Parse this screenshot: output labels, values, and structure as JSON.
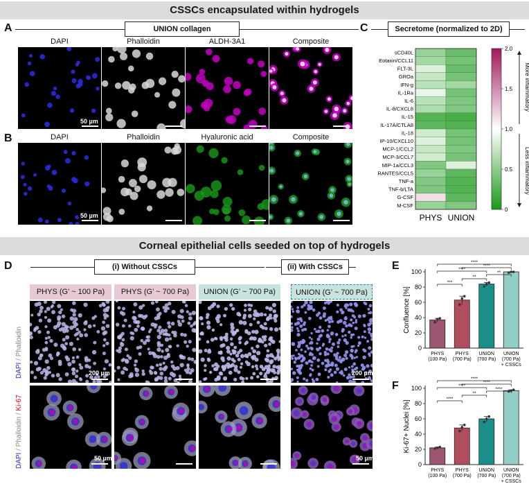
{
  "banners": {
    "top": "CSSCs encapsulated within hydrogels",
    "bottom": "Corneal epithelial cells seeded on top of hydrogels"
  },
  "panels": {
    "a": "A",
    "b": "B",
    "c": "C",
    "d": "D",
    "e": "E",
    "f": "F"
  },
  "panel_a": {
    "box_label": "UNION collagen",
    "channels": [
      "DAPI",
      "Phalloidin",
      "ALDH-3A1",
      "Composite"
    ],
    "scale_label": "50 µm"
  },
  "panel_b": {
    "channels": [
      "DAPI",
      "Phalloidin",
      "Hyaluronic acid",
      "Composite"
    ],
    "scale_label": "50 µm"
  },
  "panel_c": {
    "box_label": "Secretome (normalized to 2D)"
  },
  "panel_d": {
    "group_i": "(i) Without CSSCs",
    "group_ii": "(ii) With CSSCs",
    "conditions": [
      "PHYS  (G’ ~ 100 Pa)",
      "PHYS  (G’ ~ 700 Pa)",
      "UNION (G’ ~ 700 Pa)",
      "UNION (G’ ~ 700 Pa)"
    ],
    "row1_label": {
      "dapi": "DAPI",
      "sep": " / ",
      "phalloidin": "Phalloidin"
    },
    "row2_label": {
      "dapi": "DAPI",
      "sep1": " / ",
      "phalloidin": "Phalloidin",
      "sep2": " / ",
      "ki67": "Ki-67"
    },
    "scale_row1": "200 µm",
    "scale_row2": "50 µm"
  },
  "colors": {
    "phys100": "#9c5672",
    "phys700": "#b04e5e",
    "union700": "#1a8f8a",
    "union_csscs": "#7fc6bd",
    "heat_low": "#1a9a1a",
    "heat_mid": "#ffffff",
    "heat_high": "#a0185c",
    "dapi": "#2a2ad8",
    "ki67": "#d00000",
    "hyaluronic": "#1a9a1a",
    "aldh": "#c200c2"
  },
  "chart_data": [
    {
      "type": "heatmap",
      "columns": [
        "PHYS",
        "UNION"
      ],
      "rows": [
        "sCD40L",
        "Eotaxin/CCL11",
        "FLT-3L",
        "GROa",
        "IFN-g",
        "IL-1Ra",
        "IL-6",
        "IL-8/CXCL8",
        "IL-15",
        "IL-17A/CTLA8",
        "IL-18",
        "IP-10/CXCL10",
        "MCP-1/CCL2",
        "MCP-3/CCL7",
        "MIP-1a/CCL3",
        "RANTES/CCL5",
        "TNF-a",
        "TNF-b/LTA",
        "G-CSF",
        "M-CSF"
      ],
      "values": [
        [
          0.55,
          0.35
        ],
        [
          0.6,
          0.4
        ],
        [
          0.85,
          0.35
        ],
        [
          0.75,
          0.4
        ],
        [
          0.7,
          0.6
        ],
        [
          0.9,
          0.4
        ],
        [
          0.7,
          0.45
        ],
        [
          0.65,
          0.45
        ],
        [
          0.25,
          0.2
        ],
        [
          0.3,
          0.25
        ],
        [
          0.8,
          0.4
        ],
        [
          0.85,
          0.4
        ],
        [
          0.75,
          0.45
        ],
        [
          0.8,
          0.4
        ],
        [
          0.45,
          0.85
        ],
        [
          0.55,
          0.3
        ],
        [
          0.45,
          0.25
        ],
        [
          0.45,
          0.25
        ],
        [
          1.15,
          0.3
        ],
        [
          0.55,
          0.45
        ]
      ],
      "colorbar": {
        "min": 0,
        "max": 2.0,
        "ticks": [
          0,
          0.5,
          1.0,
          1.5,
          2.0
        ]
      },
      "annotations": {
        "up": "More inflammatory",
        "down": "Less inflammatory"
      }
    },
    {
      "type": "bar",
      "ylabel": "Confluence [%]",
      "ylim": [
        0,
        100
      ],
      "yticks": [
        0,
        20,
        40,
        60,
        80,
        100
      ],
      "categories": [
        "PHYS (100 Pa)",
        "PHYS (700 Pa)",
        "UNION (700 Pa)",
        "UNION (700 Pa) + CSSCs"
      ],
      "values": [
        37,
        63,
        84,
        100
      ],
      "points": [
        [
          34,
          38,
          39
        ],
        [
          57,
          65,
          68
        ],
        [
          81,
          84,
          86
        ],
        [
          99,
          100,
          100
        ]
      ],
      "significance": [
        {
          "from": 0,
          "to": 1,
          "label": "***"
        },
        {
          "from": 1,
          "to": 2,
          "label": "**"
        },
        {
          "from": 2,
          "to": 3,
          "label": "**"
        },
        {
          "from": 0,
          "to": 2,
          "label": "****"
        },
        {
          "from": 1,
          "to": 3,
          "label": "****"
        },
        {
          "from": 0,
          "to": 3,
          "label": "****"
        }
      ]
    },
    {
      "type": "bar",
      "ylabel": "Ki-67+ Nuclei [%]",
      "ylim": [
        0,
        100
      ],
      "yticks": [
        0,
        20,
        40,
        60,
        80,
        100
      ],
      "categories": [
        "PHYS (100 Pa)",
        "PHYS (700 Pa)",
        "UNION (700 Pa)",
        "UNION (700 Pa) + CSSCs"
      ],
      "values": [
        22,
        48,
        60,
        97
      ],
      "points": [
        [
          21,
          22,
          23
        ],
        [
          44,
          49,
          52
        ],
        [
          56,
          60,
          63
        ],
        [
          96,
          97,
          98
        ]
      ],
      "significance": [
        {
          "from": 0,
          "to": 1,
          "label": "****"
        },
        {
          "from": 1,
          "to": 2,
          "label": "**"
        },
        {
          "from": 2,
          "to": 3,
          "label": "****"
        },
        {
          "from": 0,
          "to": 2,
          "label": "****"
        },
        {
          "from": 1,
          "to": 3,
          "label": "****"
        },
        {
          "from": 0,
          "to": 3,
          "label": "****"
        }
      ]
    }
  ]
}
